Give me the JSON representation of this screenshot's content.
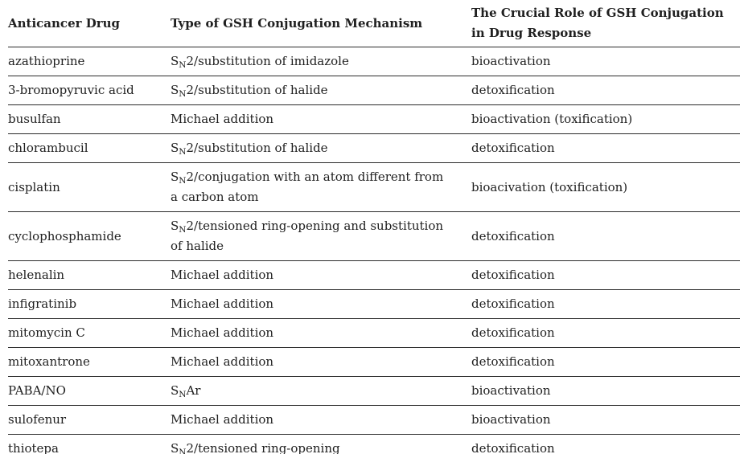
{
  "table": {
    "headers": {
      "drug": "Anticancer Drug",
      "mechanism": "Type of GSH Conjugation Mechanism",
      "role": "The Crucial Role of GSH Conjugation in Drug Response"
    },
    "text_color": "#202020",
    "rule_color": "#2b2b2b",
    "rows": [
      {
        "drug": "azathioprine",
        "mech_pre": "S",
        "mech_sub": "N",
        "mech_rest": "2/substitution of imidazole",
        "role": "bioactivation"
      },
      {
        "drug": "3-bromopyruvic acid",
        "mech_pre": "S",
        "mech_sub": "N",
        "mech_rest": "2/substitution of halide",
        "role": "detoxification"
      },
      {
        "drug": "busulfan",
        "mech_pre": "",
        "mech_sub": "",
        "mech_rest": "Michael addition",
        "role": "bioactivation (toxification)"
      },
      {
        "drug": "chlorambucil",
        "mech_pre": "S",
        "mech_sub": "N",
        "mech_rest": "2/substitution of halide",
        "role": "detoxification"
      },
      {
        "drug": "cisplatin",
        "mech_pre": "S",
        "mech_sub": "N",
        "mech_rest": "2/conjugation with an atom different from a carbon atom",
        "role": "bioacivation (toxification)"
      },
      {
        "drug": "cyclophosphamide",
        "mech_pre": "S",
        "mech_sub": "N",
        "mech_rest": "2/tensioned ring-opening and substitution of halide",
        "role": "detoxification"
      },
      {
        "drug": "helenalin",
        "mech_pre": "",
        "mech_sub": "",
        "mech_rest": "Michael addition",
        "role": "detoxification"
      },
      {
        "drug": "infigratinib",
        "mech_pre": "",
        "mech_sub": "",
        "mech_rest": "Michael addition",
        "role": "detoxification"
      },
      {
        "drug": "mitomycin C",
        "mech_pre": "",
        "mech_sub": "",
        "mech_rest": "Michael addition",
        "role": "detoxification"
      },
      {
        "drug": "mitoxantrone",
        "mech_pre": "",
        "mech_sub": "",
        "mech_rest": "Michael addition",
        "role": "detoxification"
      },
      {
        "drug": "PABA/NO",
        "mech_pre": "S",
        "mech_sub": "N",
        "mech_rest": "Ar",
        "role": "bioactivation"
      },
      {
        "drug": "sulofenur",
        "mech_pre": "",
        "mech_sub": "",
        "mech_rest": "Michael addition",
        "role": "bioactivation"
      },
      {
        "drug": "thiotepa",
        "mech_pre": "S",
        "mech_sub": "N",
        "mech_rest": "2/tensioned ring-opening",
        "role": "detoxification"
      }
    ]
  }
}
